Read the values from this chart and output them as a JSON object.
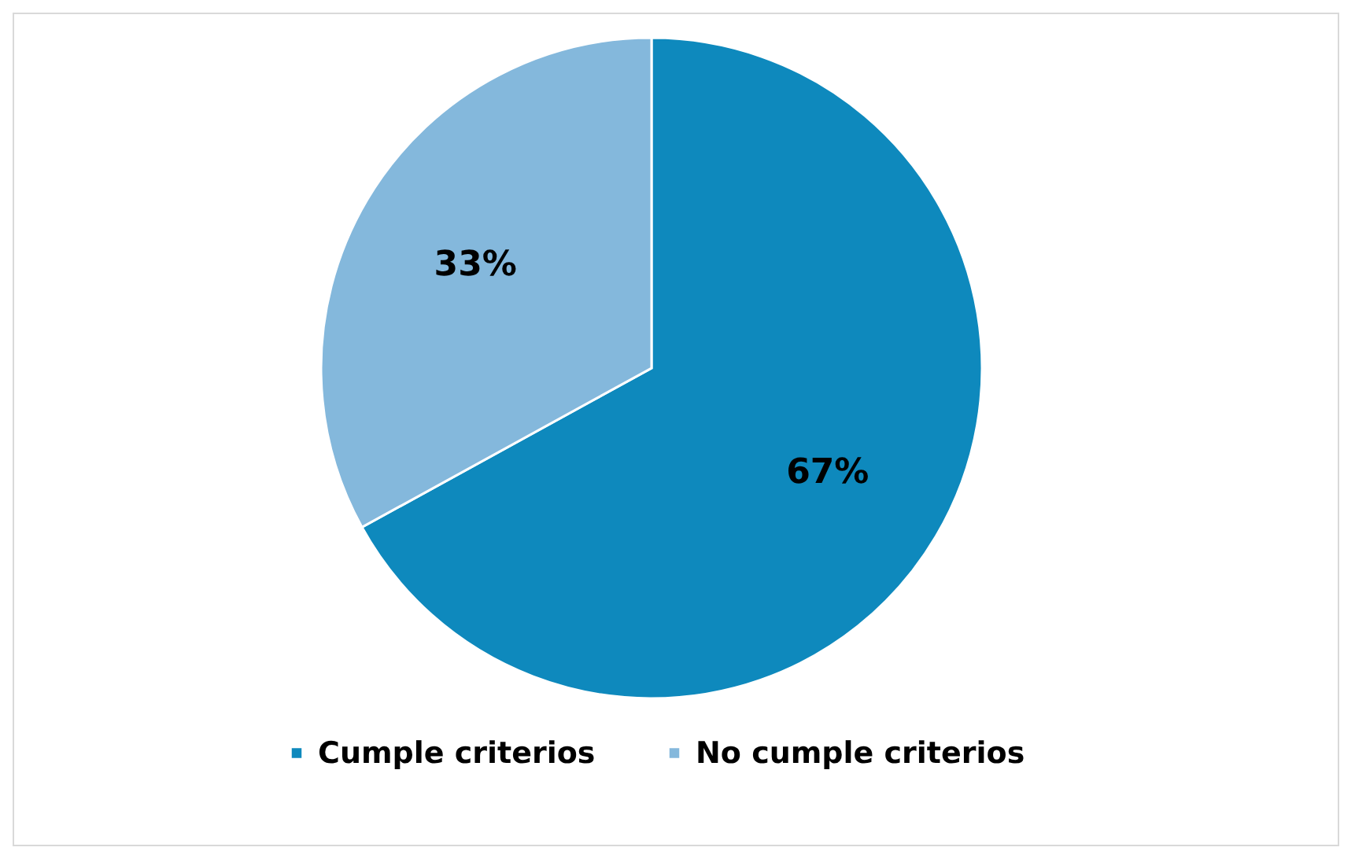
{
  "chart_data": {
    "type": "pie",
    "categories": [
      "Cumple criterios",
      "No cumple criterios"
    ],
    "values": [
      67,
      33
    ],
    "colors": [
      "#0e89bd",
      "#84b8dc"
    ],
    "value_labels": [
      "67%",
      "33%"
    ],
    "legend": "bottom"
  }
}
